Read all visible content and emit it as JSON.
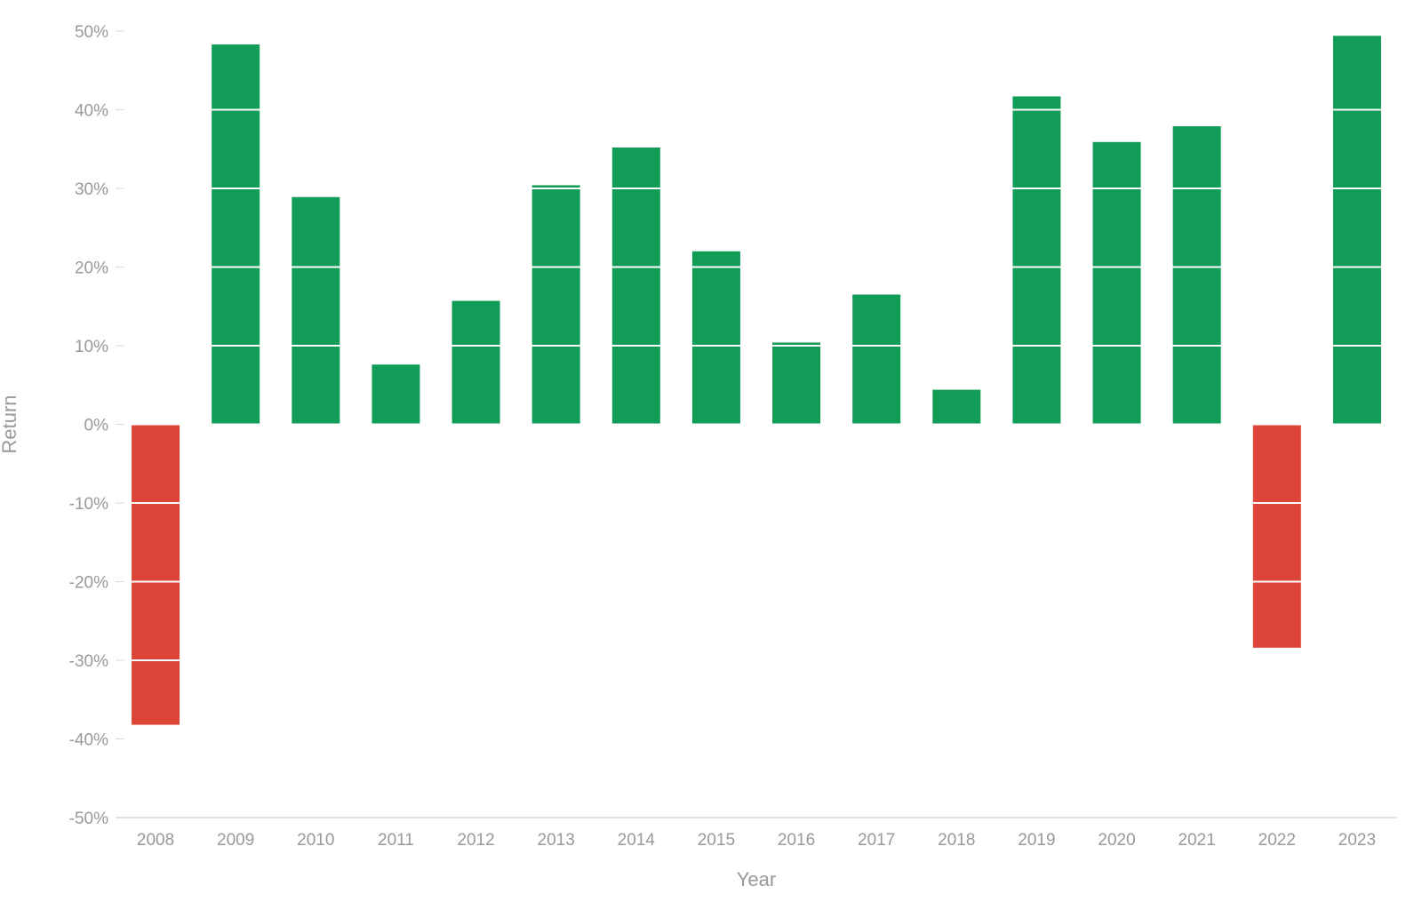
{
  "chart_data": {
    "type": "bar",
    "categories": [
      "2008",
      "2009",
      "2010",
      "2011",
      "2012",
      "2013",
      "2014",
      "2015",
      "2016",
      "2017",
      "2018",
      "2019",
      "2020",
      "2021",
      "2022",
      "2023"
    ],
    "values": [
      -38.2,
      48.3,
      28.9,
      7.6,
      15.7,
      30.4,
      35.2,
      22.0,
      10.4,
      16.5,
      4.4,
      41.7,
      35.9,
      37.9,
      -28.4,
      49.4
    ],
    "xlabel": "Year",
    "ylabel": "Return",
    "ylim": [
      -50,
      50
    ],
    "yticks": [
      50,
      40,
      30,
      20,
      10,
      0,
      -10,
      -20,
      -30,
      -40,
      -50
    ],
    "ytick_labels": [
      "50%",
      "40%",
      "30%",
      "20%",
      "10%",
      "0%",
      "-10%",
      "-20%",
      "-30%",
      "-40%",
      "-50%"
    ],
    "grid": true,
    "grid_overlays_bars": true,
    "colors": {
      "positive": "#119c57",
      "negative": "#db4437",
      "grid": "#ffffff",
      "axis": "#d9d9d9",
      "text": "#999999"
    }
  }
}
